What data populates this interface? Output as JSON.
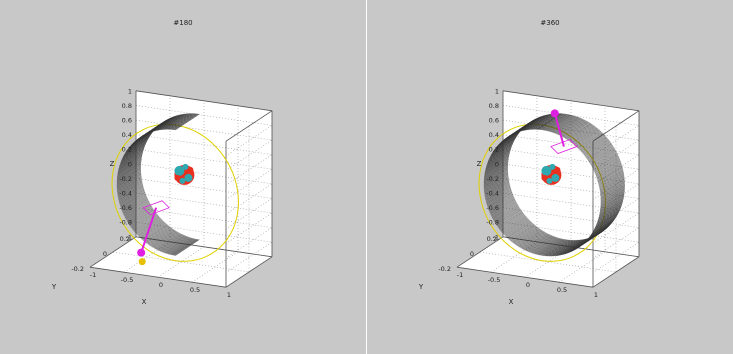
{
  "chart_data": [
    {
      "type": "scatter",
      "title": "#180",
      "xlabel": "X",
      "ylabel": "Y",
      "zlabel": "Z",
      "xlim": [
        -1,
        1
      ],
      "ylim": [
        -0.2,
        0.2
      ],
      "zlim": [
        -1,
        1
      ],
      "x_ticks": [
        "-1",
        "-0.5",
        "0",
        "0.5",
        "1"
      ],
      "y_ticks": [
        "-0.2",
        "0",
        "0.2"
      ],
      "z_ticks": [
        "1",
        "0.8",
        "0.6",
        "0.4",
        "0.2",
        "0",
        "-0.2",
        "-0.4",
        "-0.6",
        "-0.8",
        "-1"
      ],
      "grid": true,
      "ribbon_sweep_deg": 180,
      "marker_position": "bottom",
      "colors": {
        "orbit": "#e0d000",
        "ribbon": "#333333",
        "marker": "#e020e0",
        "ground_marker": "#e8c000",
        "body_a": "#e83020",
        "body_b": "#30a8b0"
      }
    },
    {
      "type": "scatter",
      "title": "#360",
      "xlabel": "X",
      "ylabel": "Y",
      "zlabel": "Z",
      "xlim": [
        -1,
        1
      ],
      "ylim": [
        -0.2,
        0.2
      ],
      "zlim": [
        -1,
        1
      ],
      "x_ticks": [
        "-1",
        "-0.5",
        "0",
        "0.5",
        "1"
      ],
      "y_ticks": [
        "-0.2",
        "0",
        "0.2"
      ],
      "z_ticks": [
        "1",
        "0.8",
        "0.6",
        "0.4",
        "0.2",
        "0",
        "-0.2",
        "-0.4",
        "-0.6",
        "-0.8",
        "-1"
      ],
      "grid": true,
      "ribbon_sweep_deg": 360,
      "marker_position": "top",
      "colors": {
        "orbit": "#e0d000",
        "ribbon": "#333333",
        "marker": "#e020e0",
        "ground_marker": "#e8c000",
        "body_a": "#e83020",
        "body_b": "#30a8b0"
      }
    }
  ]
}
